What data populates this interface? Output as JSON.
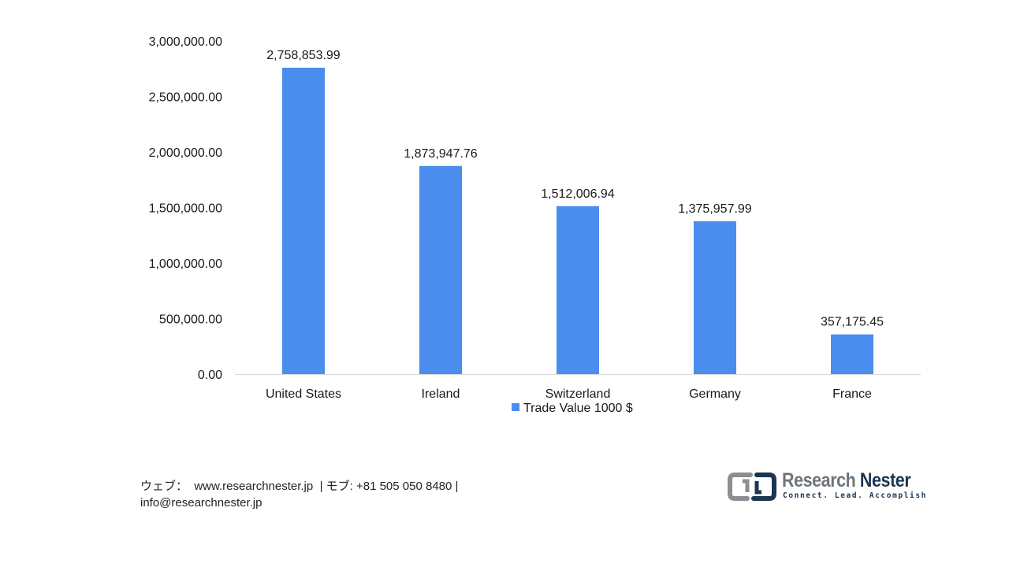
{
  "chart_data": {
    "type": "bar",
    "categories": [
      "United States",
      "Ireland",
      "Switzerland",
      "Germany",
      "France"
    ],
    "series": [
      {
        "name": "Trade Value 1000 $",
        "values": [
          2758853.99,
          1873947.76,
          1512006.94,
          1375957.99,
          357175.45
        ],
        "value_labels": [
          "2,758,853.99",
          "1,873,947.76",
          "1,512,006.94",
          "1,375,957.99",
          "357,175.45"
        ]
      }
    ],
    "yticks": [
      0,
      500000,
      1000000,
      1500000,
      2000000,
      2500000,
      3000000
    ],
    "ytick_labels": [
      "0.00",
      "500,000.00",
      "1,000,000.00",
      "1,500,000.00",
      "2,000,000.00",
      "2,500,000.00",
      "3,000,000.00"
    ],
    "ylim": [
      0,
      3000000
    ],
    "title": "",
    "xlabel": "",
    "ylabel": "",
    "grid": false,
    "legend": "bottom-center",
    "bar_color": "#4a8ded",
    "axis_color": "#d9d9d9"
  },
  "footer": {
    "line1": "ウェブ：  www.researchnester.jp  | モブ: +81 505 050 8480 |",
    "line2": "info@researchnester.jp"
  },
  "logo": {
    "word1": "Research",
    "word2": "Nester",
    "tagline": "Connect. Lead. Accomplish",
    "mark_icon": "research-nester-logo-icon"
  }
}
